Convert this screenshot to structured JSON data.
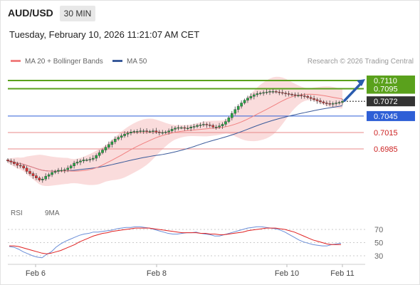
{
  "header": {
    "symbol": "AUD/USD",
    "timeframe": "30 MIN",
    "datetime": "Tuesday, February 10, 2026 11:21:07 AM CET"
  },
  "legend": {
    "ma20_label": "MA 20 + Bollinger Bands",
    "ma50_label": "MA 50",
    "credit": "Research © 2026 Trading Central"
  },
  "rsi_legend": {
    "rsi": "RSI",
    "ma9": "9MA"
  },
  "colors": {
    "resistance": "#5aa11c",
    "support_line": "#e88888",
    "pivot": "#2e5fd6",
    "current_price": "#333333",
    "ma20": "#f08080",
    "ma50": "#3a5a9a",
    "bollinger_fill": "#f9d6d6",
    "candle_up": "#27a745",
    "candle_down": "#dd3333",
    "rsi": "#6a8ed8",
    "rsi_ma": "#e02020",
    "forecast_arrow": "#2a5cae"
  },
  "chart_data": [
    {
      "type": "candlestick",
      "title": "AUD/USD 30 MIN",
      "x_tick_labels": [
        "Feb 6",
        "Feb 8",
        "Feb 10",
        "Feb 11"
      ],
      "price_levels": [
        {
          "value": 0.711,
          "label": "0.7110",
          "kind": "resistance"
        },
        {
          "value": 0.7095,
          "label": "0.7095",
          "kind": "resistance"
        },
        {
          "value": 0.7072,
          "label": "0.7072",
          "kind": "current_price"
        },
        {
          "value": 0.7045,
          "label": "0.7045",
          "kind": "pivot"
        },
        {
          "value": 0.7015,
          "label": "0.7015",
          "kind": "support"
        },
        {
          "value": 0.6985,
          "label": "0.6985",
          "kind": "support"
        }
      ],
      "ylim": [
        0.6925,
        0.7125
      ],
      "closes": [
        0.6963,
        0.6961,
        0.6958,
        0.6955,
        0.6954,
        0.695,
        0.6944,
        0.694,
        0.6936,
        0.6932,
        0.6928,
        0.693,
        0.6935,
        0.6938,
        0.6942,
        0.6944,
        0.6946,
        0.6946,
        0.6947,
        0.695,
        0.6954,
        0.6959,
        0.6961,
        0.6963,
        0.6965,
        0.6965,
        0.6966,
        0.6968,
        0.6973,
        0.6978,
        0.6983,
        0.6988,
        0.6993,
        0.6998,
        0.7003,
        0.7006,
        0.7009,
        0.7012,
        0.7014,
        0.7016,
        0.7017,
        0.7017,
        0.7018,
        0.7018,
        0.7017,
        0.7017,
        0.7018,
        0.7016,
        0.7015,
        0.7015,
        0.7016,
        0.7018,
        0.7021,
        0.7023,
        0.7024,
        0.7024,
        0.7023,
        0.7023,
        0.7025,
        0.7026,
        0.7028,
        0.7029,
        0.703,
        0.7029,
        0.7028,
        0.7025,
        0.7025,
        0.7027,
        0.703,
        0.7035,
        0.7042,
        0.705,
        0.7057,
        0.7063,
        0.7069,
        0.7074,
        0.7078,
        0.7081,
        0.7084,
        0.7086,
        0.7087,
        0.7088,
        0.7089,
        0.709,
        0.709,
        0.7089,
        0.7088,
        0.7087,
        0.7086,
        0.7085,
        0.7084,
        0.7083,
        0.7083,
        0.7082,
        0.7081,
        0.7079,
        0.7077,
        0.7075,
        0.7073,
        0.7071,
        0.7069,
        0.7068,
        0.7067,
        0.7068,
        0.7069,
        0.707,
        0.7072
      ],
      "forecast": {
        "from": 0.7072,
        "to": 0.711
      }
    },
    {
      "type": "line",
      "title": "RSI",
      "series": [
        {
          "name": "RSI",
          "values": [
            44,
            43,
            40,
            36,
            33,
            30,
            28,
            27,
            32,
            36,
            43,
            48,
            52,
            55,
            58,
            61,
            63,
            64,
            66,
            66,
            67,
            68,
            69,
            71,
            72,
            73,
            73,
            74,
            74,
            73,
            72,
            70,
            68,
            66,
            64,
            63,
            63,
            64,
            65,
            65,
            66,
            64,
            63,
            62,
            60,
            60,
            62,
            64,
            66,
            68,
            70,
            72,
            73,
            74,
            74,
            73,
            72,
            71,
            69,
            66,
            62,
            58,
            54,
            51,
            49,
            47,
            46,
            45,
            45,
            47,
            48,
            49
          ]
        },
        {
          "name": "9MA",
          "values": [
            45,
            45,
            44,
            42,
            40,
            38,
            36,
            34,
            33,
            34,
            36,
            38,
            41,
            44,
            47,
            51,
            54,
            57,
            60,
            62,
            64,
            65,
            67,
            68,
            69,
            70,
            71,
            72,
            72,
            72,
            72,
            71,
            70,
            69,
            68,
            67,
            66,
            65,
            65,
            65,
            65,
            64,
            64,
            63,
            63,
            62,
            62,
            63,
            64,
            65,
            66,
            68,
            69,
            70,
            71,
            72,
            72,
            72,
            71,
            70,
            68,
            66,
            63,
            60,
            57,
            54,
            52,
            50,
            48,
            47,
            47,
            47
          ]
        }
      ],
      "y_tick_labels": [
        "70",
        "50",
        "30"
      ],
      "ylim": [
        20,
        85
      ]
    }
  ]
}
